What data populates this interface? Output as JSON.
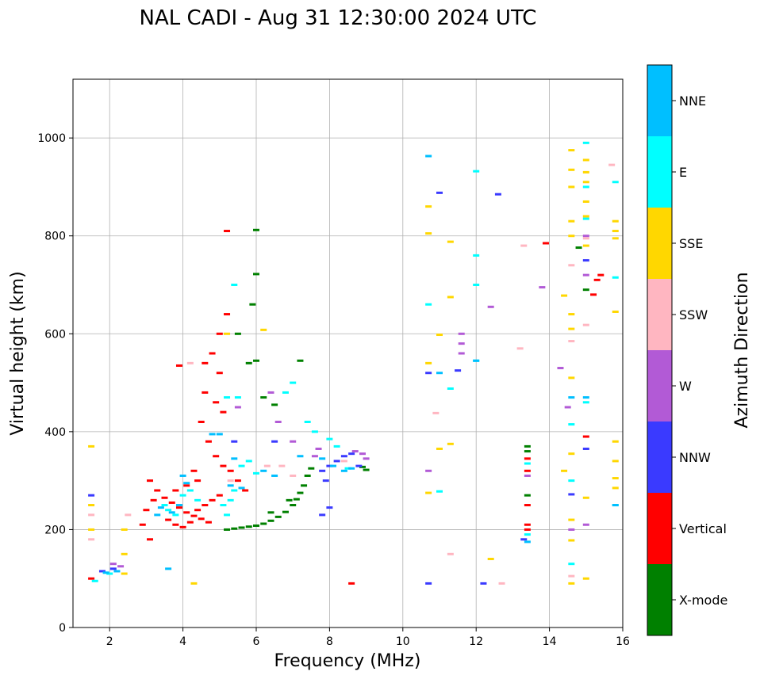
{
  "chart_data": {
    "type": "scatter",
    "title": "NAL CADI - Aug 31 12:30:00 2024 UTC",
    "xlabel": "Frequency (MHz)",
    "ylabel": "Virtual height (km)",
    "xlim": [
      1,
      16
    ],
    "ylim": [
      0,
      1120
    ],
    "x_ticks": [
      2,
      4,
      6,
      8,
      10,
      12,
      14,
      16
    ],
    "y_ticks": [
      0,
      200,
      400,
      600,
      800,
      1000
    ],
    "grid": true,
    "colorbar": {
      "title": "Azimuth Direction",
      "categories": [
        {
          "label": "X-mode",
          "color": "#008000"
        },
        {
          "label": "Vertical",
          "color": "#ff0000"
        },
        {
          "label": "NNW",
          "color": "#3a3aff"
        },
        {
          "label": "W",
          "color": "#b25ad6"
        },
        {
          "label": "SSW",
          "color": "#ffb6c1"
        },
        {
          "label": "SSE",
          "color": "#ffd700"
        },
        {
          "label": "E",
          "color": "#00ffff"
        },
        {
          "label": "NNE",
          "color": "#00bfff"
        }
      ]
    },
    "series": [
      {
        "name": "X-mode",
        "points": [
          [
            5.2,
            200
          ],
          [
            5.4,
            202
          ],
          [
            5.6,
            204
          ],
          [
            5.8,
            206
          ],
          [
            6.0,
            208
          ],
          [
            6.2,
            212
          ],
          [
            6.4,
            218
          ],
          [
            6.6,
            226
          ],
          [
            6.8,
            236
          ],
          [
            7.0,
            250
          ],
          [
            7.1,
            262
          ],
          [
            7.2,
            275
          ],
          [
            7.3,
            290
          ],
          [
            7.4,
            310
          ],
          [
            7.5,
            325
          ],
          [
            6.4,
            235
          ],
          [
            6.9,
            260
          ],
          [
            8.9,
            328
          ],
          [
            9.0,
            322
          ],
          [
            6.0,
            812
          ],
          [
            6.0,
            722
          ],
          [
            6.0,
            545
          ],
          [
            5.9,
            660
          ],
          [
            7.2,
            545
          ],
          [
            5.5,
            600
          ],
          [
            5.8,
            540
          ],
          [
            6.2,
            470
          ],
          [
            6.5,
            455
          ],
          [
            13.4,
            370
          ],
          [
            13.4,
            360
          ],
          [
            13.4,
            270
          ],
          [
            14.8,
            776
          ],
          [
            15.0,
            690
          ]
        ]
      },
      {
        "name": "Vertical",
        "points": [
          [
            3.1,
            300
          ],
          [
            3.3,
            280
          ],
          [
            3.5,
            265
          ],
          [
            3.7,
            255
          ],
          [
            3.9,
            245
          ],
          [
            4.1,
            235
          ],
          [
            4.3,
            228
          ],
          [
            4.5,
            222
          ],
          [
            4.7,
            215
          ],
          [
            3.6,
            220
          ],
          [
            3.8,
            210
          ],
          [
            4.0,
            205
          ],
          [
            4.2,
            215
          ],
          [
            4.4,
            240
          ],
          [
            4.6,
            250
          ],
          [
            4.8,
            260
          ],
          [
            5.0,
            270
          ],
          [
            3.2,
            260
          ],
          [
            3.0,
            240
          ],
          [
            2.9,
            210
          ],
          [
            3.1,
            180
          ],
          [
            4.9,
            460
          ],
          [
            5.1,
            440
          ],
          [
            5.2,
            640
          ],
          [
            4.8,
            560
          ],
          [
            5.0,
            520
          ],
          [
            4.6,
            480
          ],
          [
            4.5,
            420
          ],
          [
            4.7,
            380
          ],
          [
            4.9,
            350
          ],
          [
            5.1,
            330
          ],
          [
            5.3,
            320
          ],
          [
            5.2,
            810
          ],
          [
            5.0,
            600
          ],
          [
            4.6,
            540
          ],
          [
            3.9,
            535
          ],
          [
            4.4,
            300
          ],
          [
            4.3,
            320
          ],
          [
            4.1,
            290
          ],
          [
            3.8,
            280
          ],
          [
            5.5,
            300
          ],
          [
            5.7,
            280
          ],
          [
            1.5,
            100
          ],
          [
            8.6,
            90
          ],
          [
            13.4,
            345
          ],
          [
            13.4,
            320
          ],
          [
            13.4,
            250
          ],
          [
            13.4,
            210
          ],
          [
            13.4,
            200
          ],
          [
            15.0,
            390
          ],
          [
            15.2,
            680
          ],
          [
            15.4,
            720
          ],
          [
            15.3,
            710
          ],
          [
            13.9,
            785
          ]
        ]
      },
      {
        "name": "NNW",
        "points": [
          [
            1.5,
            270
          ],
          [
            1.8,
            115
          ],
          [
            2.1,
            120
          ],
          [
            7.8,
            320
          ],
          [
            7.9,
            300
          ],
          [
            8.0,
            330
          ],
          [
            8.2,
            340
          ],
          [
            8.4,
            350
          ],
          [
            8.6,
            355
          ],
          [
            8.8,
            330
          ],
          [
            7.8,
            230
          ],
          [
            8.0,
            245
          ],
          [
            5.4,
            380
          ],
          [
            6.5,
            380
          ],
          [
            12.6,
            885
          ],
          [
            11.0,
            888
          ],
          [
            12.2,
            90
          ],
          [
            10.7,
            90
          ],
          [
            13.3,
            180
          ],
          [
            14.6,
            272
          ],
          [
            15.0,
            750
          ],
          [
            15.0,
            365
          ],
          [
            10.7,
            520
          ],
          [
            11.5,
            525
          ]
        ]
      },
      {
        "name": "W",
        "points": [
          [
            11.6,
            600
          ],
          [
            11.6,
            580
          ],
          [
            11.6,
            560
          ],
          [
            8.7,
            360
          ],
          [
            8.9,
            355
          ],
          [
            9.0,
            345
          ],
          [
            7.7,
            365
          ],
          [
            7.6,
            350
          ],
          [
            7.0,
            380
          ],
          [
            6.6,
            420
          ],
          [
            5.5,
            450
          ],
          [
            6.4,
            480
          ],
          [
            14.3,
            530
          ],
          [
            14.5,
            450
          ],
          [
            15.0,
            800
          ],
          [
            15.0,
            720
          ],
          [
            15.0,
            210
          ],
          [
            10.7,
            320
          ],
          [
            13.8,
            695
          ],
          [
            12.4,
            655
          ],
          [
            13.4,
            310
          ],
          [
            14.6,
            200
          ],
          [
            2.1,
            130
          ],
          [
            2.3,
            125
          ]
        ]
      },
      {
        "name": "SSW",
        "points": [
          [
            1.5,
            230
          ],
          [
            1.5,
            180
          ],
          [
            2.5,
            230
          ],
          [
            4.2,
            540
          ],
          [
            5.3,
            300
          ],
          [
            6.7,
            330
          ],
          [
            8.4,
            340
          ],
          [
            13.2,
            570
          ],
          [
            13.3,
            780
          ],
          [
            12.7,
            90
          ],
          [
            11.3,
            150
          ],
          [
            10.9,
            438
          ],
          [
            14.6,
            740
          ],
          [
            14.6,
            585
          ],
          [
            15.0,
            618
          ],
          [
            14.6,
            105
          ],
          [
            15.7,
            945
          ],
          [
            15.0,
            795
          ],
          [
            6.3,
            330
          ],
          [
            7.0,
            310
          ]
        ]
      },
      {
        "name": "SSE",
        "points": [
          [
            1.5,
            370
          ],
          [
            1.5,
            250
          ],
          [
            1.5,
            200
          ],
          [
            2.4,
            200
          ],
          [
            2.4,
            150
          ],
          [
            2.4,
            110
          ],
          [
            4.3,
            90
          ],
          [
            5.2,
            600
          ],
          [
            6.2,
            608
          ],
          [
            10.7,
            860
          ],
          [
            10.7,
            805
          ],
          [
            10.7,
            540
          ],
          [
            10.7,
            275
          ],
          [
            11.0,
            598
          ],
          [
            11.0,
            365
          ],
          [
            11.3,
            675
          ],
          [
            11.3,
            788
          ],
          [
            11.3,
            375
          ],
          [
            12.4,
            140
          ],
          [
            14.6,
            975
          ],
          [
            14.6,
            935
          ],
          [
            14.6,
            900
          ],
          [
            14.6,
            830
          ],
          [
            14.6,
            800
          ],
          [
            14.6,
            640
          ],
          [
            14.6,
            610
          ],
          [
            14.6,
            510
          ],
          [
            14.6,
            355
          ],
          [
            14.6,
            220
          ],
          [
            14.6,
            178
          ],
          [
            14.6,
            90
          ],
          [
            15.0,
            955
          ],
          [
            15.0,
            930
          ],
          [
            15.0,
            910
          ],
          [
            15.0,
            870
          ],
          [
            15.0,
            840
          ],
          [
            15.0,
            780
          ],
          [
            15.0,
            265
          ],
          [
            15.0,
            100
          ],
          [
            15.8,
            830
          ],
          [
            15.8,
            810
          ],
          [
            15.8,
            795
          ],
          [
            15.8,
            645
          ],
          [
            15.8,
            380
          ],
          [
            15.8,
            340
          ],
          [
            15.8,
            305
          ],
          [
            15.8,
            285
          ],
          [
            14.4,
            320
          ],
          [
            14.4,
            678
          ]
        ]
      },
      {
        "name": "E",
        "points": [
          [
            3.6,
            240
          ],
          [
            3.8,
            230
          ],
          [
            3.5,
            250
          ],
          [
            4.0,
            270
          ],
          [
            4.2,
            280
          ],
          [
            4.4,
            260
          ],
          [
            5.1,
            250
          ],
          [
            5.3,
            260
          ],
          [
            5.4,
            280
          ],
          [
            5.2,
            230
          ],
          [
            5.6,
            330
          ],
          [
            5.8,
            340
          ],
          [
            6.0,
            315
          ],
          [
            7.4,
            420
          ],
          [
            7.6,
            400
          ],
          [
            8.0,
            385
          ],
          [
            8.2,
            370
          ],
          [
            8.5,
            325
          ],
          [
            7.0,
            500
          ],
          [
            6.8,
            480
          ],
          [
            5.4,
            700
          ],
          [
            5.2,
            470
          ],
          [
            5.5,
            470
          ],
          [
            1.6,
            95
          ],
          [
            2.0,
            110
          ],
          [
            10.7,
            660
          ],
          [
            11.3,
            488
          ],
          [
            11.0,
            278
          ],
          [
            12.0,
            932
          ],
          [
            12.0,
            760
          ],
          [
            12.0,
            700
          ],
          [
            12.0,
            545
          ],
          [
            14.6,
            130
          ],
          [
            14.6,
            415
          ],
          [
            15.0,
            990
          ],
          [
            15.0,
            900
          ],
          [
            15.0,
            835
          ],
          [
            15.0,
            460
          ],
          [
            15.8,
            910
          ],
          [
            15.8,
            715
          ],
          [
            15.8,
            250
          ],
          [
            13.4,
            335
          ],
          [
            13.4,
            190
          ],
          [
            14.6,
            300
          ]
        ]
      },
      {
        "name": "NNE",
        "points": [
          [
            3.3,
            230
          ],
          [
            3.4,
            245
          ],
          [
            3.7,
            235
          ],
          [
            3.9,
            250
          ],
          [
            4.0,
            310
          ],
          [
            4.1,
            295
          ],
          [
            5.3,
            290
          ],
          [
            5.6,
            285
          ],
          [
            5.0,
            395
          ],
          [
            4.8,
            395
          ],
          [
            6.2,
            320
          ],
          [
            6.5,
            310
          ],
          [
            7.2,
            350
          ],
          [
            7.8,
            345
          ],
          [
            8.1,
            330
          ],
          [
            8.4,
            320
          ],
          [
            8.6,
            325
          ],
          [
            3.6,
            120
          ],
          [
            10.7,
            963
          ],
          [
            11.0,
            520
          ],
          [
            12.0,
            545
          ],
          [
            13.4,
            175
          ],
          [
            14.6,
            470
          ],
          [
            15.0,
            470
          ],
          [
            15.8,
            250
          ],
          [
            1.9,
            112
          ],
          [
            2.2,
            115
          ],
          [
            5.4,
            345
          ]
        ]
      }
    ]
  }
}
